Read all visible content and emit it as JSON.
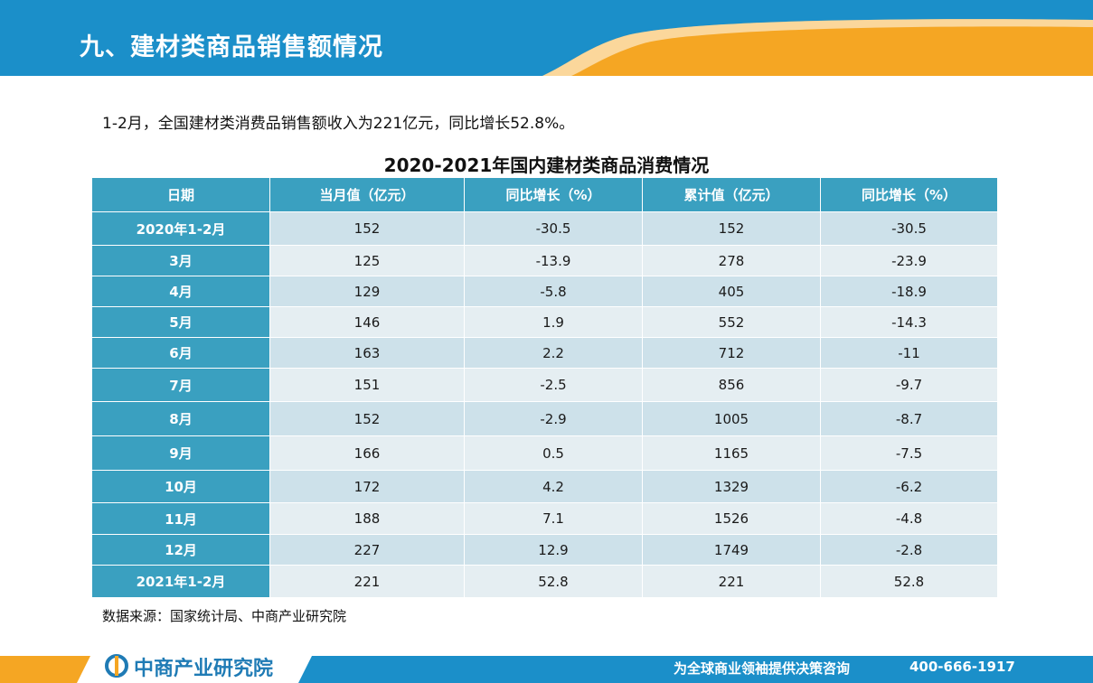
{
  "header": {
    "title": "九、建材类商品销售额情况"
  },
  "summary": "1-2月，全国建材类消费品销售额收入为221亿元，同比增长52.8%。",
  "table": {
    "title": "2020-2021年国内建材类商品消费情况",
    "headers": [
      "日期",
      "当月值（亿元）",
      "同比增长（%）",
      "累计值（亿元）",
      "同比增长（%）"
    ],
    "rows": [
      [
        "2020年1-2月",
        "152",
        "-30.5",
        "152",
        "-30.5"
      ],
      [
        "3月",
        "125",
        "-13.9",
        "278",
        "-23.9"
      ],
      [
        "4月",
        "129",
        "-5.8",
        "405",
        "-18.9"
      ],
      [
        "5月",
        "146",
        "1.9",
        "552",
        "-14.3"
      ],
      [
        "6月",
        "163",
        "2.2",
        "712",
        "-11"
      ],
      [
        "7月",
        "151",
        "-2.5",
        "856",
        "-9.7"
      ],
      [
        "8月",
        "152",
        "-2.9",
        "1005",
        "-8.7"
      ],
      [
        "9月",
        "166",
        "0.5",
        "1165",
        "-7.5"
      ],
      [
        "10月",
        "172",
        "4.2",
        "1329",
        "-6.2"
      ],
      [
        "11月",
        "188",
        "7.1",
        "1526",
        "-4.8"
      ],
      [
        "12月",
        "227",
        "12.9",
        "1749",
        "-2.8"
      ],
      [
        "2021年1-2月",
        "221",
        "52.8",
        "221",
        "52.8"
      ]
    ]
  },
  "source": "数据来源：国家统计局、中商产业研究院",
  "footer": {
    "logo": "中商产业研究院",
    "tagline": "为全球商业领袖提供决策咨询",
    "phone": "400-666-1917"
  },
  "colors": {
    "header_blue": "#1b8fc9",
    "accent_orange": "#f5a623",
    "table_header": "#3aa0c0",
    "row_light": "#e5eef2",
    "row_dark": "#cde1ea"
  }
}
